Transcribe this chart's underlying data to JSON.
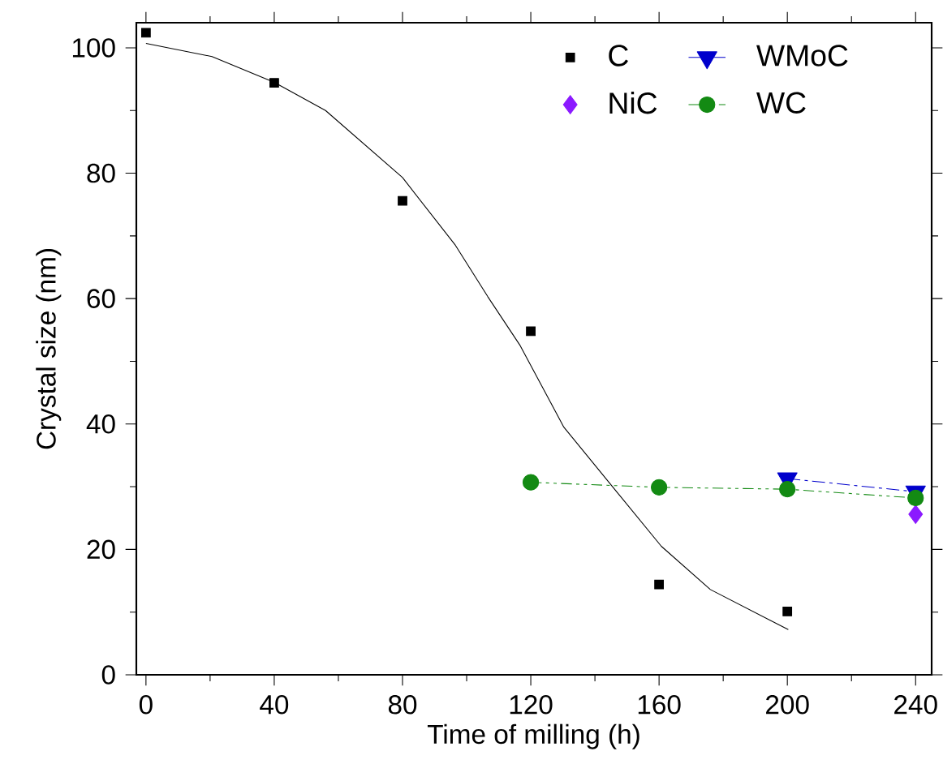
{
  "chart_data": {
    "type": "scatter",
    "xlabel": "Time of milling (h)",
    "ylabel": "Crystal size (nm)",
    "xlim": [
      -3,
      245
    ],
    "ylim": [
      0,
      104
    ],
    "xticks": [
      0,
      {
        "value": 20,
        "label": null
      },
      40,
      {
        "value": 60,
        "label": null
      },
      80,
      {
        "value": 100,
        "label": null
      },
      120,
      {
        "value": 140,
        "label": null
      },
      160,
      {
        "value": 180,
        "label": null
      },
      200,
      {
        "value": 220,
        "label": null
      },
      240
    ],
    "yticks": [
      0,
      {
        "value": 10,
        "label": null
      },
      20,
      {
        "value": 30,
        "label": null
      },
      40,
      {
        "value": 50,
        "label": null
      },
      60,
      {
        "value": 70,
        "label": null
      },
      80,
      {
        "value": 90,
        "label": null
      },
      100
    ],
    "legend": "top right",
    "series": [
      {
        "name": "C",
        "marker": "square",
        "color": "#000000",
        "x": [
          0,
          40,
          80,
          120,
          160,
          200
        ],
        "values": [
          102.4,
          94.4,
          75.6,
          54.8,
          14.4,
          10.1
        ]
      },
      {
        "name": "NiC",
        "marker": "diamond",
        "color": "#8b1aff",
        "x": [
          240
        ],
        "values": [
          25.6
        ]
      },
      {
        "name": "WMoC",
        "type": "line",
        "marker": "triangle",
        "line_style": "dashed",
        "color": "#0000cc",
        "x": [
          200,
          240
        ],
        "values": [
          31.3,
          29.2
        ]
      },
      {
        "name": "WC",
        "type": "line",
        "marker": "circle",
        "line_style": "dotted",
        "color": "#138a13",
        "x": [
          120,
          160,
          200,
          240
        ],
        "values": [
          30.7,
          29.9,
          29.6,
          28.2
        ]
      },
      {
        "type": "line",
        "marker": "none",
        "line_style": "solid",
        "color": "#000000",
        "x": [
          0,
          20.6,
          40,
          56,
          80,
          96.5,
          106.6,
          116.7,
          130.3,
          145.5,
          160.7,
          176,
          200.3
        ],
        "values": [
          100.7,
          98.6,
          94.5,
          90,
          79.3,
          68.5,
          60.3,
          52.5,
          39.5,
          30.0,
          20.5,
          13.6,
          7.2
        ]
      }
    ]
  }
}
